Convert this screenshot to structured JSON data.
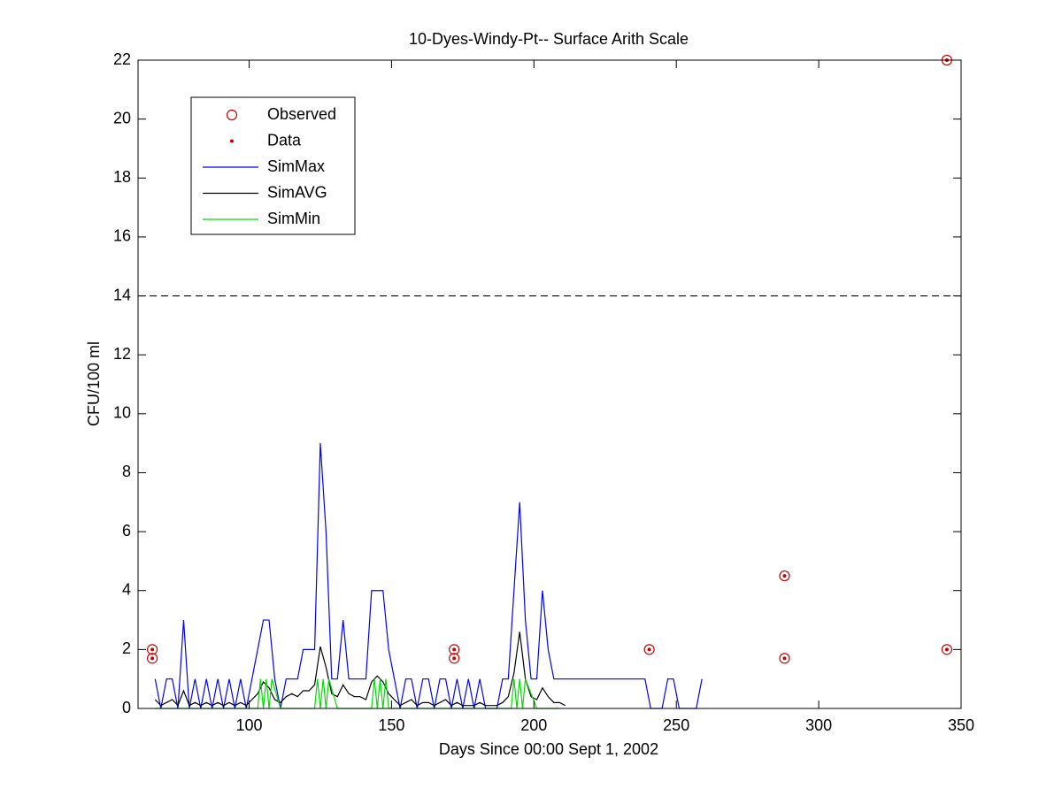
{
  "chart_data": {
    "type": "line",
    "title": "10-Dyes-Windy-Pt-- Surface Arith Scale",
    "x_label": "Days Since 00:00 Sept 1, 2002",
    "y_label": "CFU/100 ml",
    "xlim": [
      61,
      350
    ],
    "ylim": [
      0,
      22
    ],
    "xticks": [
      100,
      150,
      200,
      250,
      300,
      350
    ],
    "yticks": [
      0,
      2,
      4,
      6,
      8,
      10,
      12,
      14,
      16,
      18,
      20,
      22
    ],
    "grid": false,
    "legend_position": "upper-left",
    "reference_line": {
      "value": 14,
      "color": "#000000",
      "style": "dashed"
    },
    "series": [
      {
        "name": "Observed",
        "color": "#cc0000",
        "mode": "markers",
        "marker": "circle",
        "x": [
          66,
          66,
          172,
          172,
          240.5,
          288,
          288,
          345,
          345
        ],
        "values": [
          2,
          1.7,
          2,
          1.7,
          2,
          4.5,
          1.7,
          2,
          22
        ]
      },
      {
        "name": "Data",
        "color": "#cc0000",
        "mode": "markers",
        "marker": "dot",
        "x": [
          66,
          66,
          172,
          172,
          240.5,
          288,
          288,
          345,
          345
        ],
        "values": [
          2,
          1.7,
          2,
          1.7,
          2,
          4.5,
          1.7,
          2,
          22
        ]
      },
      {
        "name": "SimMax",
        "color": "#0000ff",
        "mode": "line",
        "x": [
          67,
          69,
          71,
          73,
          75,
          77,
          79,
          81,
          83,
          85,
          87,
          89,
          91,
          93,
          95,
          97,
          99,
          101,
          103,
          105,
          107,
          109,
          111,
          113,
          115,
          117,
          119,
          121,
          123,
          125,
          127,
          129,
          131,
          133,
          135,
          137,
          139,
          141,
          143,
          145,
          147,
          149,
          151,
          153,
          155,
          157,
          159,
          161,
          163,
          165,
          167,
          169,
          171,
          173,
          175,
          177,
          179,
          181,
          183,
          185,
          187,
          189,
          191,
          193,
          195,
          197,
          199,
          201,
          203,
          205,
          207,
          209,
          211,
          213,
          215,
          217,
          219,
          221,
          223,
          225,
          227,
          229,
          231,
          233,
          235,
          237,
          239,
          241,
          243,
          245,
          247,
          249,
          251,
          253,
          255,
          257,
          259
        ],
        "values": [
          1,
          0,
          1,
          1,
          0,
          3,
          0,
          1,
          0,
          1,
          0,
          1,
          0,
          1,
          0,
          1,
          0,
          1,
          2,
          3,
          3,
          1,
          0,
          1,
          1,
          1,
          2,
          2,
          2,
          9,
          6,
          1,
          1,
          3,
          1,
          1,
          1,
          1,
          4,
          4,
          4,
          2,
          1,
          0,
          1,
          1,
          0,
          1,
          1,
          0,
          1,
          1,
          0,
          1,
          0,
          1,
          0,
          1,
          0,
          0,
          0,
          1,
          1,
          4,
          7,
          3,
          1,
          1,
          4,
          2,
          1,
          1,
          1,
          1,
          1,
          1,
          1,
          1,
          1,
          1,
          1,
          1,
          1,
          1,
          1,
          1,
          1,
          0,
          0,
          0,
          1,
          1,
          0,
          0,
          0,
          0,
          1
        ]
      },
      {
        "name": "SimAVG",
        "color": "#000000",
        "mode": "line",
        "x": [
          67,
          69,
          71,
          73,
          75,
          77,
          79,
          81,
          83,
          85,
          87,
          89,
          91,
          93,
          95,
          97,
          99,
          101,
          103,
          105,
          107,
          109,
          111,
          113,
          115,
          117,
          119,
          121,
          123,
          125,
          127,
          129,
          131,
          133,
          135,
          137,
          139,
          141,
          143,
          145,
          147,
          149,
          151,
          153,
          155,
          157,
          159,
          161,
          163,
          165,
          167,
          169,
          171,
          173,
          175,
          177,
          179,
          181,
          183,
          185,
          187,
          189,
          191,
          193,
          195,
          197,
          199,
          201,
          203,
          205,
          207,
          209,
          211
        ],
        "values": [
          0.3,
          0.1,
          0.2,
          0.3,
          0.1,
          0.6,
          0.1,
          0.2,
          0.1,
          0.2,
          0.1,
          0.2,
          0.1,
          0.2,
          0.1,
          0.2,
          0.1,
          0.3,
          0.5,
          0.9,
          0.7,
          0.3,
          0.2,
          0.4,
          0.5,
          0.4,
          0.6,
          0.6,
          0.8,
          2.1,
          1.4,
          0.5,
          0.4,
          0.8,
          0.5,
          0.4,
          0.4,
          0.3,
          0.9,
          1.1,
          0.9,
          0.5,
          0.3,
          0.1,
          0.2,
          0.3,
          0.1,
          0.2,
          0.2,
          0.1,
          0.2,
          0.3,
          0.1,
          0.2,
          0.1,
          0.1,
          0.1,
          0.2,
          0.1,
          0.1,
          0.1,
          0.2,
          0.4,
          1.2,
          2.6,
          1.0,
          0.4,
          0.3,
          0.7,
          0.4,
          0.2,
          0.2,
          0.1
        ]
      },
      {
        "name": "SimMin",
        "color": "#00dd00",
        "mode": "line",
        "x": [
          67,
          71,
          75,
          79,
          83,
          87,
          91,
          95,
          99,
          103,
          104,
          105,
          106,
          107,
          108,
          111,
          115,
          119,
          123,
          124,
          125,
          126,
          127,
          128,
          131,
          135,
          139,
          143,
          144,
          145,
          146,
          147,
          148,
          149,
          153,
          157,
          161,
          165,
          169,
          173,
          177,
          181,
          185,
          189,
          192,
          193,
          194,
          195,
          196,
          197,
          201,
          205,
          209
        ],
        "values": [
          0,
          0,
          0,
          0,
          0,
          0,
          0,
          0,
          0,
          0,
          1,
          0,
          1,
          0,
          1,
          0,
          0,
          0,
          0,
          1,
          0,
          1,
          0,
          1,
          0,
          0,
          0,
          0,
          1,
          0,
          1,
          0,
          1,
          0,
          0,
          0,
          0,
          0,
          0,
          0,
          0,
          0,
          0,
          0,
          0,
          1,
          0,
          1,
          0,
          1,
          0,
          0,
          0
        ]
      }
    ]
  }
}
